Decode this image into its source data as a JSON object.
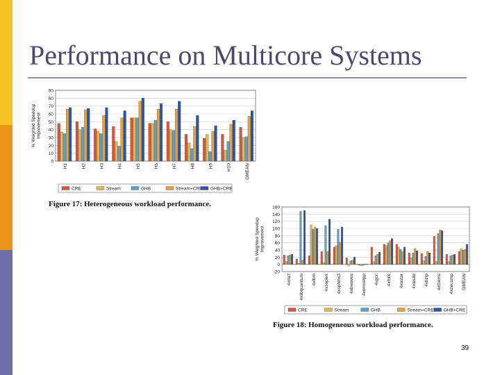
{
  "slide": {
    "title": "Performance on Multicore Systems",
    "page_number": "39",
    "colors": {
      "strip_top": "#f4c321",
      "strip_mid": "#e8951a",
      "strip_bottom": "#6e6ea8",
      "title": "#4a4a6e"
    }
  },
  "chart_data": [
    {
      "type": "bar",
      "caption": "Figure 17: Heterogeneous workload performance.",
      "ylabel": "% Weighted Speedup Improvement",
      "ylim": [
        0,
        90
      ],
      "yticks": [
        0,
        10,
        20,
        30,
        40,
        50,
        60,
        70,
        80,
        90
      ],
      "grid": true,
      "legend_position": "bottom",
      "categories": [
        "H1",
        "H2",
        "H3",
        "H4",
        "H5",
        "H6",
        "H7",
        "H8",
        "H9",
        "H10",
        "GMEAN"
      ],
      "series": [
        {
          "name": "CRE",
          "color": "#d9573a",
          "values": [
            48,
            50,
            41,
            44,
            55,
            48,
            50,
            34,
            29,
            34,
            43
          ]
        },
        {
          "name": "Stream",
          "color": "#e0b84f",
          "values": [
            37,
            40,
            38,
            25,
            55,
            48,
            40,
            23,
            34,
            14,
            30
          ]
        },
        {
          "name": "GHB",
          "color": "#5c9fd0",
          "values": [
            35,
            43,
            35,
            19,
            55,
            52,
            39,
            16,
            12,
            25,
            31
          ]
        },
        {
          "name": "Stream+CRE",
          "color": "#e8a23c",
          "values": [
            66,
            65,
            58,
            55,
            76,
            66,
            66,
            44,
            38,
            47,
            57
          ]
        },
        {
          "name": "GHB+CRE",
          "color": "#2a56a8",
          "values": [
            68,
            67,
            68,
            64,
            80,
            73,
            76,
            58,
            45,
            52,
            64
          ]
        }
      ]
    },
    {
      "type": "bar",
      "caption": "Figure 18: Homogeneous workload performance.",
      "ylabel": "% Weighted Speedup Improvement",
      "ylim": [
        -20,
        160
      ],
      "yticks": [
        -20,
        0,
        20,
        40,
        60,
        80,
        100,
        120,
        140,
        160
      ],
      "grid": true,
      "legend_position": "bottom",
      "categories": [
        "4xmcf",
        "4xlibquantum",
        "4xlbm",
        "4xsoplex",
        "4xsphinx3",
        "4xbwaves",
        "4xomnetpp",
        "4xgcc",
        "4xmilc",
        "4xastar",
        "4xleslie",
        "4xbzip",
        "4xGems",
        "4xzeusmp",
        "GMEAN"
      ],
      "series": [
        {
          "name": "CRE",
          "color": "#d9573a",
          "values": [
            26,
            15,
            24,
            36,
            48,
            18,
            -2,
            48,
            56,
            56,
            32,
            30,
            78,
            28,
            36
          ]
        },
        {
          "name": "Stream",
          "color": "#e0b84f",
          "values": [
            8,
            3,
            110,
            5,
            52,
            -5,
            -4,
            8,
            52,
            48,
            18,
            10,
            8,
            8,
            44
          ]
        },
        {
          "name": "GHB",
          "color": "#5c9fd0",
          "values": [
            24,
            148,
            98,
            108,
            98,
            10,
            -3,
            24,
            60,
            42,
            32,
            22,
            86,
            24,
            40
          ]
        },
        {
          "name": "Stream+CRE",
          "color": "#e8a23c",
          "values": [
            26,
            12,
            104,
            36,
            62,
            12,
            1,
            28,
            66,
            36,
            44,
            36,
            96,
            26,
            42
          ]
        },
        {
          "name": "GHB+CRE",
          "color": "#2a56a8",
          "values": [
            28,
            150,
            100,
            126,
            104,
            20,
            0,
            34,
            72,
            48,
            38,
            32,
            94,
            28,
            56
          ]
        }
      ]
    }
  ]
}
